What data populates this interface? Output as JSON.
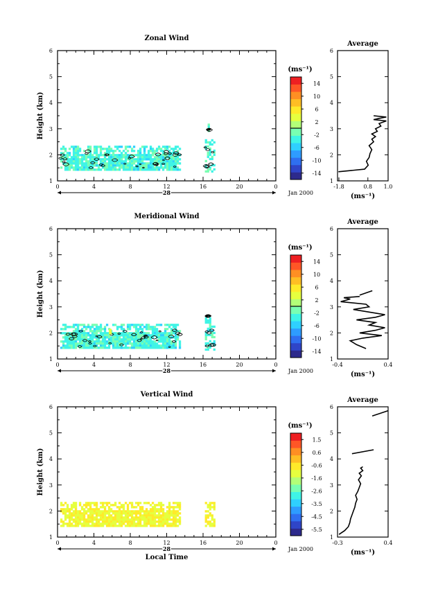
{
  "figure": {
    "date_label": "Jan 2000",
    "day_label": "28",
    "unit_label": "(ms⁻¹)",
    "x_axis_title": "Local Time",
    "avg_title": "Average"
  },
  "chart_data": [
    {
      "type": "heatmap",
      "title": "Zonal Wind",
      "xlabel": "",
      "ylabel": "Height (km)",
      "xlim": [
        0,
        24
      ],
      "ylim": [
        1,
        6
      ],
      "xticks": [
        "0",
        "4",
        "8",
        "12",
        "16",
        "20",
        "0"
      ],
      "yticks": [
        "1",
        "2",
        "3",
        "4",
        "5",
        "6"
      ],
      "colorbar": {
        "label": "(ms⁻¹)",
        "ticks": [
          "14",
          "10",
          "6",
          "2",
          "-2",
          "-6",
          "-10",
          "-14"
        ],
        "range": [
          -16,
          16
        ],
        "zero_contour": 0
      },
      "data_segments": [
        {
          "t0": 0.3,
          "t1": 13.5,
          "z0": 1.4,
          "z1": 2.35
        },
        {
          "t0": 16.2,
          "t1": 17.2,
          "z0": 1.4,
          "z1": 2.6
        },
        {
          "t0": 16.5,
          "t1": 16.7,
          "z0": 2.9,
          "z1": 3.2
        }
      ],
      "dominant_value": -3,
      "average_profile": {
        "title": "Average",
        "xlim": [
          -1.8,
          1.0
        ],
        "xticks": [
          "-1.8",
          "0.8",
          "1.0"
        ],
        "xlabel": "(ms⁻¹)",
        "ylim": [
          1,
          6
        ],
        "yticks": [
          "1",
          "2",
          "3",
          "4",
          "5",
          "6"
        ],
        "segments": [
          {
            "values": [
              -1.75,
              -0.3,
              -0.1,
              -0.2,
              -0.05,
              0.0,
              0.1,
              -0.05,
              0.2,
              0.1,
              0.3,
              0.1,
              0.4,
              0.3,
              0.6,
              0.5,
              0.9,
              0.2,
              0.5,
              0.9,
              0.2
            ],
            "heights": [
              1.35,
              1.45,
              1.6,
              1.75,
              1.9,
              2.05,
              2.2,
              2.35,
              2.5,
              2.6,
              2.7,
              2.8,
              2.9,
              3.0,
              3.1,
              3.2,
              3.3,
              3.35,
              3.4,
              3.45,
              3.5
            ]
          }
        ]
      }
    },
    {
      "type": "heatmap",
      "title": "Meridional Wind",
      "xlabel": "",
      "ylabel": "Height (km)",
      "xlim": [
        0,
        24
      ],
      "ylim": [
        1,
        6
      ],
      "xticks": [
        "0",
        "4",
        "8",
        "12",
        "16",
        "20",
        "0"
      ],
      "yticks": [
        "1",
        "2",
        "3",
        "4",
        "5",
        "6"
      ],
      "colorbar": {
        "label": "(ms⁻¹)",
        "ticks": [
          "14",
          "10",
          "6",
          "2",
          "-2",
          "-6",
          "-10",
          "-14"
        ],
        "range": [
          -16,
          16
        ],
        "zero_contour": 0
      },
      "data_segments": [
        {
          "t0": 0.3,
          "t1": 13.5,
          "z0": 1.4,
          "z1": 2.35
        },
        {
          "t0": 16.2,
          "t1": 17.2,
          "z0": 1.4,
          "z1": 2.6
        },
        {
          "t0": 16.5,
          "t1": 16.7,
          "z0": 2.6,
          "z1": 2.85
        }
      ],
      "dominant_value": -3,
      "highlight": {
        "t": 5.8,
        "z": 2.05,
        "value": 4
      },
      "average_profile": {
        "title": "Average",
        "xlim": [
          -0.4,
          0.4
        ],
        "xticks": [
          "-0.4",
          "0.4"
        ],
        "xlabel": "(ms⁻¹)",
        "ylim": [
          1,
          6
        ],
        "yticks": [
          "1",
          "2",
          "3",
          "4",
          "5",
          "6"
        ],
        "segments": [
          {
            "values": [
              0.05,
              -0.1,
              -0.2,
              0.0,
              0.3,
              -0.05,
              0.2,
              0.35,
              0.1,
              0.2,
              -0.1,
              0.2,
              0.35,
              0.1,
              -0.15,
              0.1,
              0.05,
              -0.35,
              -0.2,
              -0.3,
              -0.05
            ],
            "heights": [
              1.4,
              1.55,
              1.7,
              1.8,
              1.9,
              2.0,
              2.1,
              2.2,
              2.3,
              2.4,
              2.5,
              2.6,
              2.7,
              2.8,
              2.9,
              3.0,
              3.1,
              3.2,
              3.3,
              3.35,
              3.4
            ]
          },
          {
            "values": [
              -0.05,
              0.15
            ],
            "heights": [
              3.45,
              3.62
            ]
          }
        ]
      }
    },
    {
      "type": "heatmap",
      "title": "Vertical Wind",
      "xlabel": "Local Time",
      "ylabel": "Height (km)",
      "xlim": [
        0,
        24
      ],
      "ylim": [
        1,
        6
      ],
      "xticks": [
        "0",
        "4",
        "8",
        "12",
        "16",
        "20",
        "0"
      ],
      "yticks": [
        "1",
        "2",
        "3",
        "4",
        "5",
        "6"
      ],
      "colorbar": {
        "label": "(ms⁻¹)",
        "ticks": [
          "1.5",
          "0.6",
          "-0.6",
          "-1.6",
          "-2.6",
          "-3.5",
          "-4.5",
          "-5.5"
        ],
        "range": [
          -6.0,
          2.0
        ],
        "zero_contour": null
      },
      "data_segments": [
        {
          "t0": 0.3,
          "t1": 13.5,
          "z0": 1.4,
          "z1": 2.35
        },
        {
          "t0": 16.2,
          "t1": 17.2,
          "z0": 1.4,
          "z1": 2.35
        }
      ],
      "dominant_value": -0.9,
      "average_profile": {
        "title": "Average",
        "xlim": [
          -0.3,
          0.4
        ],
        "xticks": [
          "-0.3",
          "0.4"
        ],
        "xlabel": "(ms⁻¹)",
        "ylim": [
          1,
          6
        ],
        "yticks": [
          "1",
          "2",
          "3",
          "4",
          "5",
          "6"
        ],
        "segments": [
          {
            "values": [
              -0.28,
              -0.2,
              -0.15,
              -0.13,
              -0.12,
              -0.1,
              -0.08,
              -0.06,
              -0.05,
              -0.03,
              -0.05,
              -0.02,
              0.0,
              0.02,
              -0.01,
              0.03,
              0.0,
              0.05,
              0.02,
              0.05
            ],
            "heights": [
              1.1,
              1.25,
              1.4,
              1.55,
              1.7,
              1.85,
              2.0,
              2.15,
              2.3,
              2.45,
              2.6,
              2.75,
              2.9,
              3.05,
              3.2,
              3.35,
              3.45,
              3.55,
              3.65,
              3.7
            ]
          },
          {
            "values": [
              -0.1,
              0.2
            ],
            "heights": [
              4.2,
              4.35
            ]
          },
          {
            "values": [
              0.18,
              0.4
            ],
            "heights": [
              5.65,
              5.85
            ]
          }
        ]
      }
    }
  ]
}
